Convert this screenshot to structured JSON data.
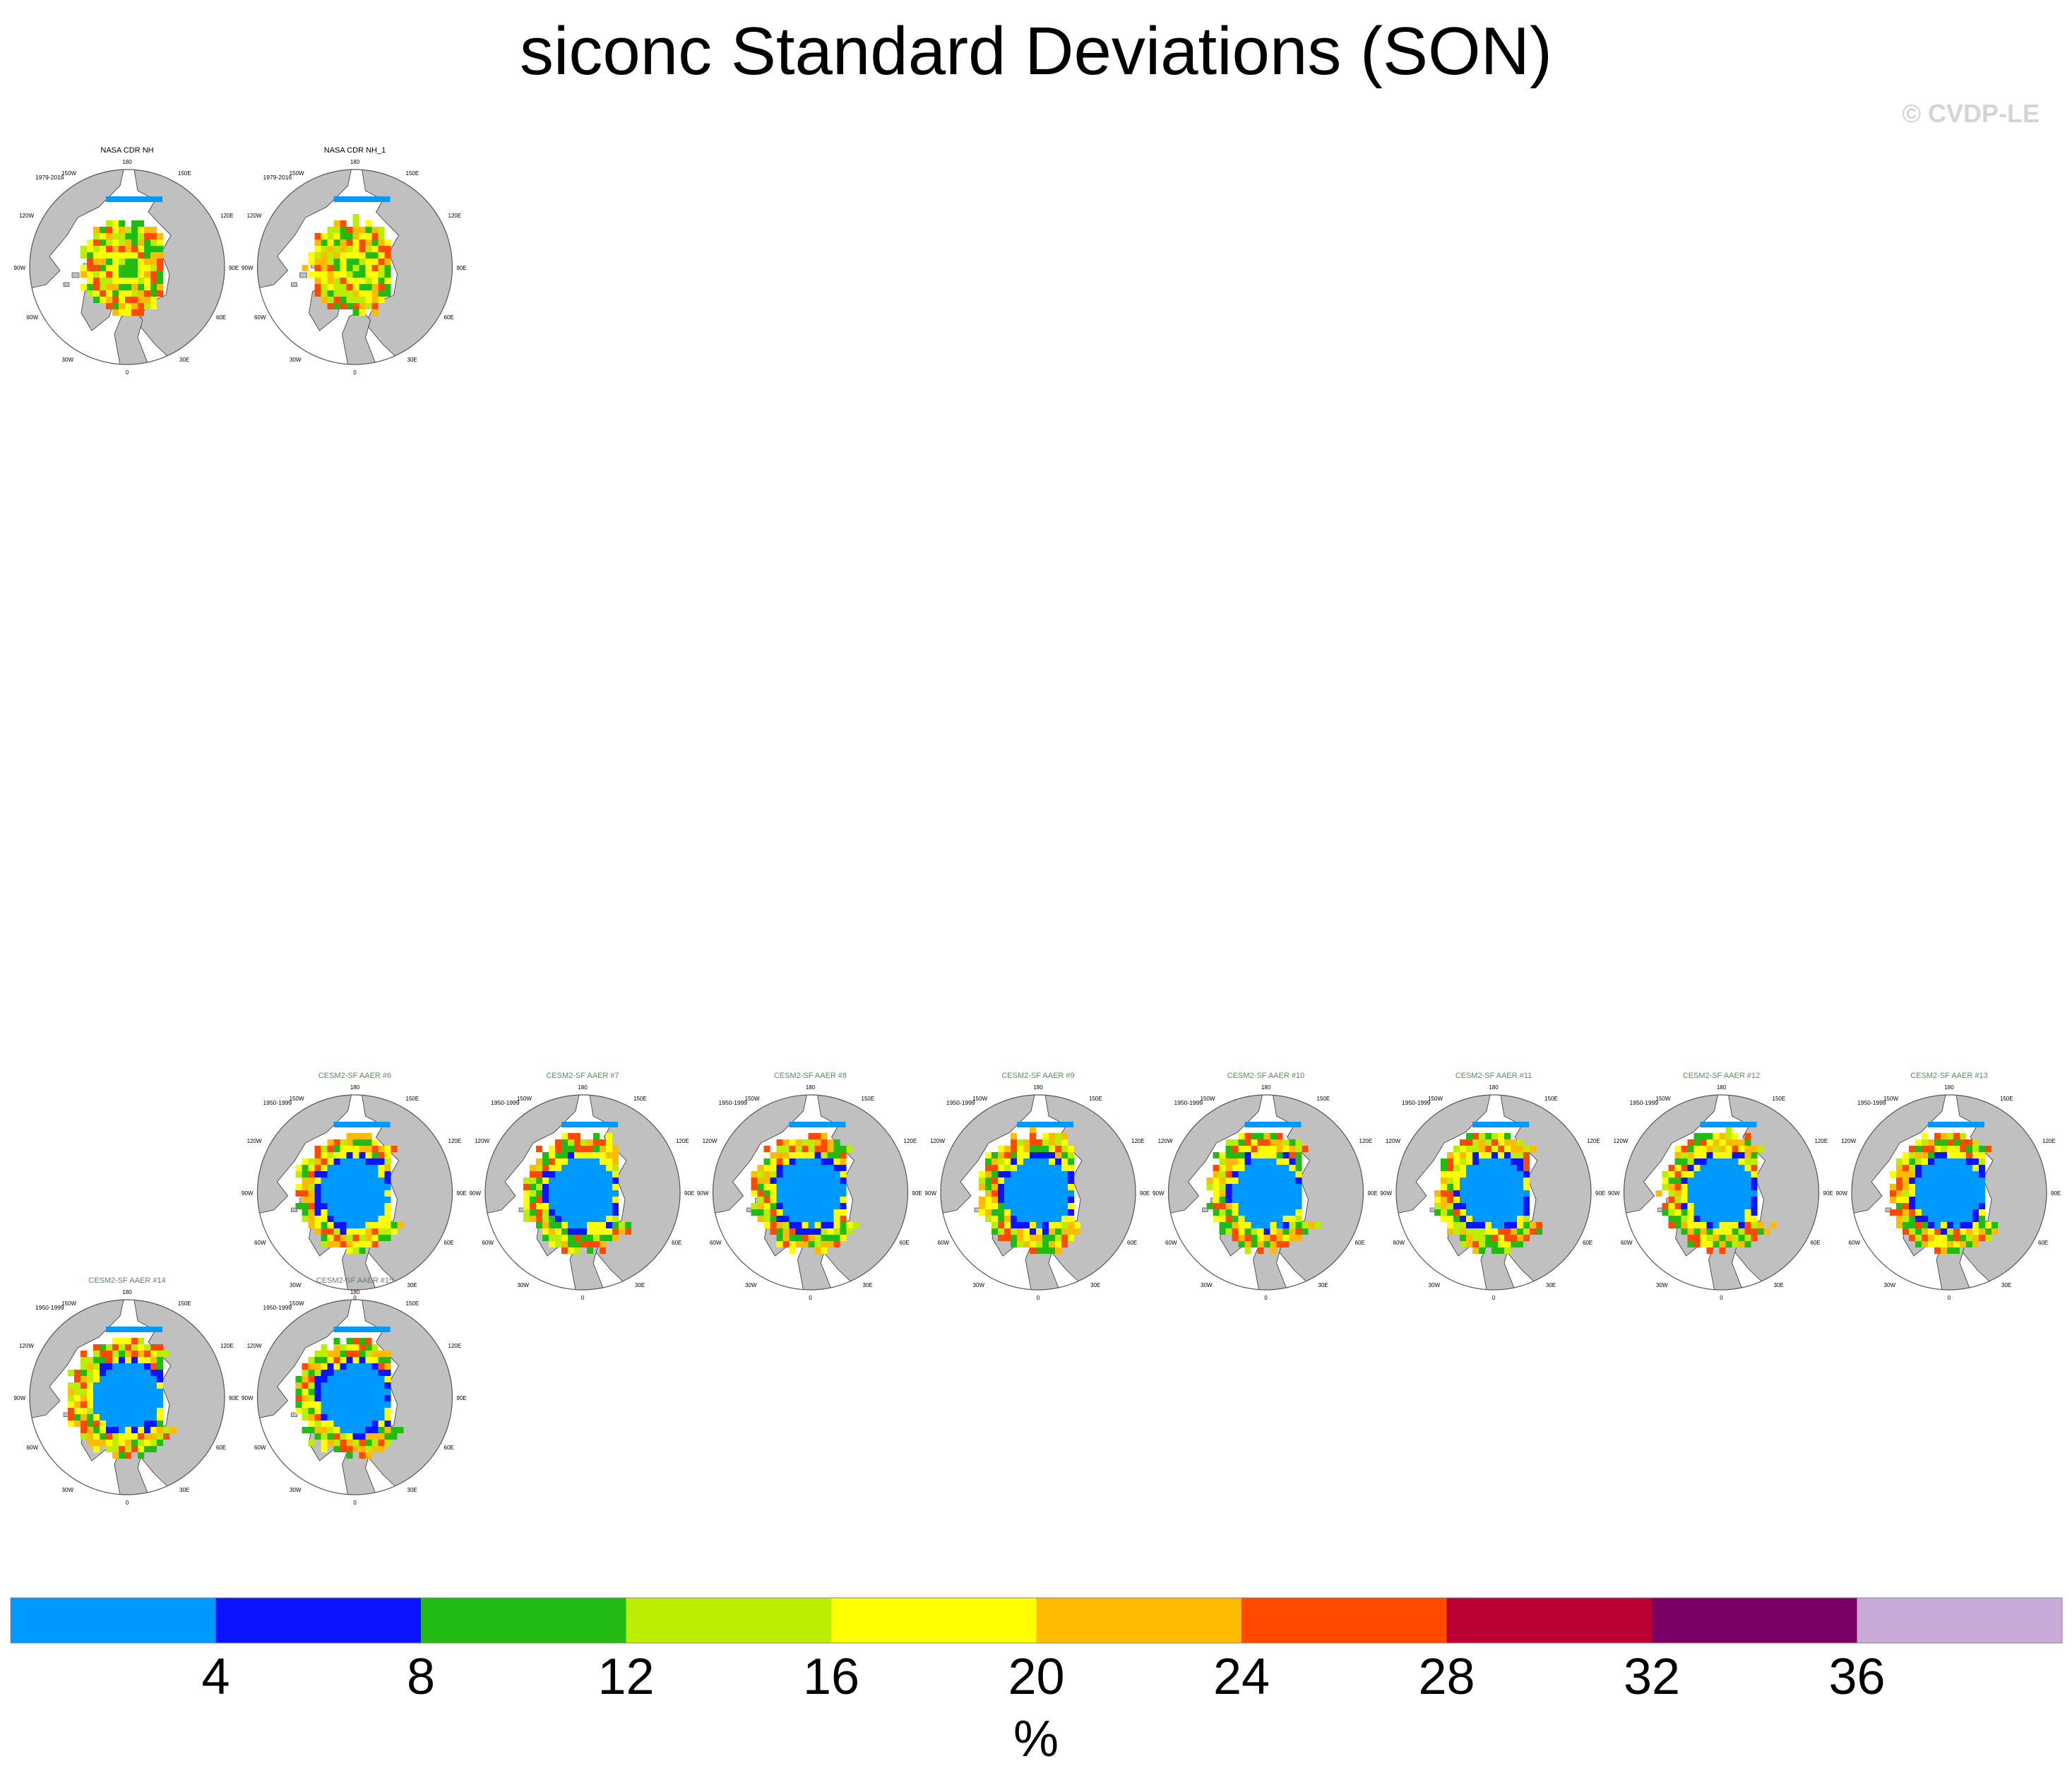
{
  "title": "siconc Standard Deviations (SON)",
  "watermark": "© CVDP-LE",
  "colors": {
    "land": "#c0c0c0",
    "ocean": "#ffffff",
    "obs_title": "#000000",
    "model_title": "#5a8a5a"
  },
  "lon_labels": {
    "top": "180",
    "top_right": "150E",
    "upper_right": "120E",
    "right": "90E",
    "lower_right": "60E",
    "bottom_right": "30E",
    "bottom": "0",
    "bottom_left": "30W",
    "lower_left": "60W",
    "left": "90W",
    "upper_left": "120W",
    "top_left": "150W"
  },
  "panels": [
    {
      "title": "NASA CDR NH",
      "period": "1979-2016",
      "kind": "obs",
      "row": 0,
      "col": 0,
      "variant": 0
    },
    {
      "title": "NASA CDR NH_1",
      "period": "1979-2016",
      "kind": "obs",
      "row": 0,
      "col": 1,
      "variant": 1
    },
    {
      "title": "CESM2-SF AAER #6",
      "period": "1950-1999",
      "kind": "model",
      "row": 1,
      "col": 1,
      "variant": 2
    },
    {
      "title": "CESM2-SF AAER #7",
      "period": "1950-1999",
      "kind": "model",
      "row": 1,
      "col": 2,
      "variant": 3
    },
    {
      "title": "CESM2-SF AAER #8",
      "period": "1950-1999",
      "kind": "model",
      "row": 1,
      "col": 3,
      "variant": 4
    },
    {
      "title": "CESM2-SF AAER #9",
      "period": "1950-1999",
      "kind": "model",
      "row": 1,
      "col": 4,
      "variant": 5
    },
    {
      "title": "CESM2-SF AAER #10",
      "period": "1950-1999",
      "kind": "model",
      "row": 1,
      "col": 5,
      "variant": 6
    },
    {
      "title": "CESM2-SF AAER #11",
      "period": "1950-1999",
      "kind": "model",
      "row": 1,
      "col": 6,
      "variant": 7
    },
    {
      "title": "CESM2-SF AAER #12",
      "period": "1950-1999",
      "kind": "model",
      "row": 1,
      "col": 7,
      "variant": 8
    },
    {
      "title": "CESM2-SF AAER #13",
      "period": "1950-1999",
      "kind": "model",
      "row": 1,
      "col": 8,
      "variant": 9
    },
    {
      "title": "CESM2-SF AAER #14",
      "period": "1950-1999",
      "kind": "model",
      "row": 2,
      "col": 0,
      "variant": 10
    },
    {
      "title": "CESM2-SF AAER #15",
      "period": "1950-1999",
      "kind": "model",
      "row": 2,
      "col": 1,
      "variant": 11
    }
  ],
  "chart_data": {
    "type": "heatmap",
    "title": "siconc Standard Deviations (SON)",
    "projection": "north polar stereographic",
    "colorbar": {
      "units": "%",
      "levels": [
        4,
        8,
        12,
        16,
        20,
        24,
        28,
        32,
        36
      ],
      "tick_labels": [
        "4",
        "8",
        "12",
        "16",
        "20",
        "24",
        "28",
        "32",
        "36"
      ],
      "colors": [
        "#0099ff",
        "#0a14ff",
        "#22bb14",
        "#bbee00",
        "#ffff00",
        "#ffbb00",
        "#ff4a00",
        "#bb0033",
        "#7a0066",
        "#c8aad8"
      ]
    }
  }
}
